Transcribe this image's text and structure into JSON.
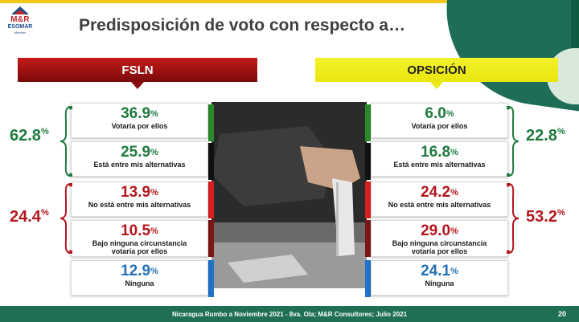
{
  "brand": {
    "logo_text": "M&R",
    "logo_sub": "ESOMAR",
    "logo_caption": "Member"
  },
  "title": "Predisposición de voto con respecto a…",
  "columns": {
    "left_header": "FSLN",
    "right_header": "OPSICIÓN"
  },
  "percent_sign": "%",
  "left": {
    "group_totals": [
      {
        "value": "62.8",
        "color": "#1f7a3f"
      },
      {
        "value": "24.4",
        "color": "#b3171d"
      }
    ],
    "items": [
      {
        "value": "36.9",
        "label": "Votaría por ellos",
        "color": "#1f7a3f"
      },
      {
        "value": "25.9",
        "label": "Está entre mis alternativas",
        "color": "#1f7a3f"
      },
      {
        "value": "13.9",
        "label": "No está entre mis alternativas",
        "color": "#b3171d"
      },
      {
        "value": "10.5",
        "label_line1": "Bajo ninguna circunstancia",
        "label_line2": "votaría por ellos",
        "color": "#b3171d"
      },
      {
        "value": "12.9",
        "label": "Ninguna",
        "color": "#2471b5"
      }
    ]
  },
  "right": {
    "group_totals": [
      {
        "value": "22.8",
        "color": "#1f7a3f"
      },
      {
        "value": "53.2",
        "color": "#b3171d"
      }
    ],
    "items": [
      {
        "value": "6.0",
        "label": "Votaría por ellos",
        "color": "#1f7a3f"
      },
      {
        "value": "16.8",
        "label": "Está entre mis alternativas",
        "color": "#1f7a3f"
      },
      {
        "value": "24.2",
        "label": "No está entre mis alternativas",
        "color": "#b3171d"
      },
      {
        "value": "29.0",
        "label_line1": "Bajo ninguna circunstancia",
        "label_line2": "votaría por ellos",
        "color": "#b3171d"
      },
      {
        "value": "24.1",
        "label": "Ninguna",
        "color": "#2471b5"
      }
    ]
  },
  "footer": {
    "source": "Nicaragua Rumbo a Noviembre 2021 -  8va. Ola; M&R Consultores; Julio 2021",
    "page": "20"
  },
  "colors": {
    "green": "#1f7a3f",
    "red": "#b3171d",
    "blue": "#2471b5",
    "fsln_bar": "#b01414",
    "opposition_bar": "#f0ee1c",
    "footer_bg": "#1f7052"
  },
  "image": {
    "description_icon": "ballot-box-photo"
  }
}
